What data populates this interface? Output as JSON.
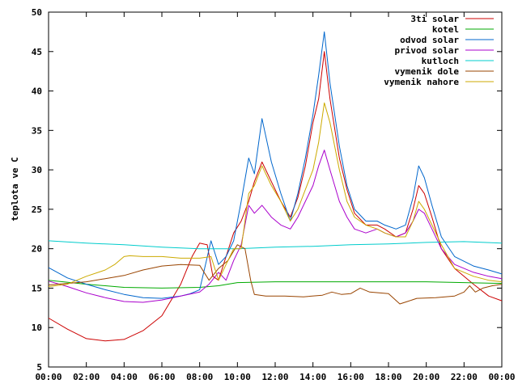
{
  "chart_data": {
    "type": "line",
    "title": "",
    "xlabel": "",
    "ylabel": "teplota ve C",
    "ylim": [
      5,
      50
    ],
    "xlim": [
      "00:00",
      "24:00"
    ],
    "grid": false,
    "legend": "top-right",
    "x_ticks": [
      "00:00",
      "02:00",
      "04:00",
      "06:00",
      "08:00",
      "10:00",
      "12:00",
      "14:00",
      "16:00",
      "18:00",
      "20:00",
      "22:00",
      "00:00"
    ],
    "y_ticks": [
      "5",
      "10",
      "15",
      "20",
      "25",
      "30",
      "35",
      "40",
      "45",
      "50"
    ],
    "series": [
      {
        "name": "3ti solar",
        "color": "#cc0000",
        "points": [
          [
            0,
            11.2
          ],
          [
            1,
            9.8
          ],
          [
            2,
            8.6
          ],
          [
            3,
            8.3
          ],
          [
            4,
            8.5
          ],
          [
            5,
            9.6
          ],
          [
            6,
            11.5
          ],
          [
            7,
            15.5
          ],
          [
            7.6,
            19.0
          ],
          [
            8,
            20.7
          ],
          [
            8.4,
            20.5
          ],
          [
            8.7,
            16.5
          ],
          [
            9,
            16.0
          ],
          [
            9.4,
            19.0
          ],
          [
            9.8,
            22.0
          ],
          [
            10.2,
            23.5
          ],
          [
            10.6,
            26.0
          ],
          [
            10.9,
            28.5
          ],
          [
            11.3,
            31.0
          ],
          [
            11.8,
            28.5
          ],
          [
            12.3,
            26.0
          ],
          [
            12.8,
            24.0
          ],
          [
            13.2,
            26.5
          ],
          [
            13.6,
            30.5
          ],
          [
            14,
            36.0
          ],
          [
            14.3,
            39.0
          ],
          [
            14.6,
            45.0
          ],
          [
            14.9,
            39.0
          ],
          [
            15.4,
            31.5
          ],
          [
            15.8,
            27.5
          ],
          [
            16.2,
            24.5
          ],
          [
            16.8,
            23.0
          ],
          [
            17.4,
            23.0
          ],
          [
            17.8,
            22.5
          ],
          [
            18.4,
            21.5
          ],
          [
            18.9,
            22.0
          ],
          [
            19.3,
            25.0
          ],
          [
            19.6,
            28.0
          ],
          [
            19.9,
            27.0
          ],
          [
            20.3,
            24.0
          ],
          [
            20.8,
            20.0
          ],
          [
            21.5,
            17.5
          ],
          [
            22.5,
            15.5
          ],
          [
            23.3,
            14.0
          ],
          [
            24,
            13.4
          ]
        ]
      },
      {
        "name": "kotel",
        "color": "#00aa00",
        "points": [
          [
            0,
            16.0
          ],
          [
            2,
            15.5
          ],
          [
            4,
            15.1
          ],
          [
            6,
            15.0
          ],
          [
            8,
            15.1
          ],
          [
            9,
            15.3
          ],
          [
            10,
            15.7
          ],
          [
            12,
            15.8
          ],
          [
            14,
            15.8
          ],
          [
            16,
            15.8
          ],
          [
            18,
            15.8
          ],
          [
            20,
            15.8
          ],
          [
            22,
            15.7
          ],
          [
            24,
            15.6
          ]
        ]
      },
      {
        "name": "odvod solar",
        "color": "#0066cc",
        "points": [
          [
            0,
            17.6
          ],
          [
            1,
            16.3
          ],
          [
            2,
            15.5
          ],
          [
            3,
            14.8
          ],
          [
            4,
            14.2
          ],
          [
            5,
            13.8
          ],
          [
            6,
            13.7
          ],
          [
            7,
            14.0
          ],
          [
            7.5,
            14.3
          ],
          [
            8,
            14.8
          ],
          [
            8.6,
            21.0
          ],
          [
            9,
            18.0
          ],
          [
            9.4,
            19.0
          ],
          [
            9.8,
            21.0
          ],
          [
            10.2,
            26.0
          ],
          [
            10.6,
            31.5
          ],
          [
            10.9,
            29.5
          ],
          [
            11.3,
            36.5
          ],
          [
            11.8,
            31.0
          ],
          [
            12.3,
            27.0
          ],
          [
            12.8,
            23.5
          ],
          [
            13.2,
            27.0
          ],
          [
            13.6,
            31.5
          ],
          [
            14,
            37.0
          ],
          [
            14.3,
            42.0
          ],
          [
            14.6,
            47.5
          ],
          [
            14.9,
            41.0
          ],
          [
            15.4,
            33.0
          ],
          [
            15.8,
            28.0
          ],
          [
            16.2,
            25.0
          ],
          [
            16.8,
            23.5
          ],
          [
            17.4,
            23.5
          ],
          [
            17.8,
            23.0
          ],
          [
            18.4,
            22.5
          ],
          [
            18.9,
            23.0
          ],
          [
            19.3,
            26.5
          ],
          [
            19.6,
            30.5
          ],
          [
            19.9,
            29.0
          ],
          [
            20.3,
            25.5
          ],
          [
            20.8,
            21.5
          ],
          [
            21.5,
            19.0
          ],
          [
            22.5,
            17.8
          ],
          [
            23.3,
            17.3
          ],
          [
            24,
            16.8
          ]
        ]
      },
      {
        "name": "privod solar",
        "color": "#aa00cc",
        "points": [
          [
            0,
            15.9
          ],
          [
            1,
            15.2
          ],
          [
            2,
            14.4
          ],
          [
            3,
            13.8
          ],
          [
            4,
            13.3
          ],
          [
            5,
            13.2
          ],
          [
            6,
            13.5
          ],
          [
            7,
            14.0
          ],
          [
            8,
            14.5
          ],
          [
            8.5,
            15.5
          ],
          [
            9,
            17.0
          ],
          [
            9.4,
            16.0
          ],
          [
            9.8,
            18.5
          ],
          [
            10.2,
            20.5
          ],
          [
            10.6,
            25.5
          ],
          [
            10.9,
            24.5
          ],
          [
            11.3,
            25.5
          ],
          [
            11.8,
            24.0
          ],
          [
            12.3,
            23.0
          ],
          [
            12.8,
            22.5
          ],
          [
            13.2,
            24.0
          ],
          [
            13.6,
            26.0
          ],
          [
            14,
            28.0
          ],
          [
            14.3,
            30.5
          ],
          [
            14.6,
            32.5
          ],
          [
            14.9,
            30.0
          ],
          [
            15.4,
            26.0
          ],
          [
            15.8,
            24.0
          ],
          [
            16.2,
            22.5
          ],
          [
            16.8,
            22.0
          ],
          [
            17.4,
            22.5
          ],
          [
            17.8,
            22.0
          ],
          [
            18.4,
            21.5
          ],
          [
            18.9,
            22.0
          ],
          [
            19.3,
            23.5
          ],
          [
            19.6,
            25.0
          ],
          [
            19.9,
            24.5
          ],
          [
            20.3,
            22.5
          ],
          [
            20.8,
            20.0
          ],
          [
            21.5,
            18.0
          ],
          [
            22.5,
            17.0
          ],
          [
            23.3,
            16.5
          ],
          [
            24,
            16.2
          ]
        ]
      },
      {
        "name": "kutloch",
        "color": "#00cccc",
        "points": [
          [
            0,
            21.0
          ],
          [
            2,
            20.7
          ],
          [
            4,
            20.5
          ],
          [
            6,
            20.2
          ],
          [
            8,
            20.0
          ],
          [
            10,
            20.0
          ],
          [
            12,
            20.2
          ],
          [
            14,
            20.3
          ],
          [
            16,
            20.5
          ],
          [
            18,
            20.6
          ],
          [
            20,
            20.8
          ],
          [
            22,
            20.9
          ],
          [
            24,
            20.7
          ]
        ]
      },
      {
        "name": "vymenik dole",
        "color": "#994400",
        "points": [
          [
            0,
            15.4
          ],
          [
            1,
            15.6
          ],
          [
            2,
            15.8
          ],
          [
            3,
            16.2
          ],
          [
            4,
            16.6
          ],
          [
            5,
            17.3
          ],
          [
            6,
            17.8
          ],
          [
            7,
            18.0
          ],
          [
            8,
            17.9
          ],
          [
            8.5,
            16.0
          ],
          [
            9,
            17.5
          ],
          [
            9.5,
            18.5
          ],
          [
            10,
            20.5
          ],
          [
            10.4,
            20.0
          ],
          [
            10.7,
            16.0
          ],
          [
            10.9,
            14.2
          ],
          [
            11.5,
            14.0
          ],
          [
            12.5,
            14.0
          ],
          [
            13.5,
            13.9
          ],
          [
            14.5,
            14.1
          ],
          [
            15,
            14.5
          ],
          [
            15.5,
            14.2
          ],
          [
            16,
            14.3
          ],
          [
            16.5,
            15.0
          ],
          [
            17,
            14.5
          ],
          [
            18,
            14.3
          ],
          [
            18.6,
            13.0
          ],
          [
            19,
            13.3
          ],
          [
            19.5,
            13.7
          ],
          [
            20.5,
            13.8
          ],
          [
            21.5,
            14.0
          ],
          [
            22,
            14.5
          ],
          [
            22.3,
            15.3
          ],
          [
            22.6,
            14.5
          ],
          [
            23,
            15.0
          ],
          [
            23.5,
            15.3
          ],
          [
            24,
            15.5
          ]
        ]
      },
      {
        "name": "vymenik nahore",
        "color": "#ccaa00",
        "points": [
          [
            0,
            15.2
          ],
          [
            1,
            15.5
          ],
          [
            2,
            16.5
          ],
          [
            3,
            17.3
          ],
          [
            3.5,
            18.0
          ],
          [
            4,
            19.0
          ],
          [
            4.3,
            19.1
          ],
          [
            5,
            19.0
          ],
          [
            6,
            19.0
          ],
          [
            7,
            18.8
          ],
          [
            8,
            18.8
          ],
          [
            8.6,
            19.0
          ],
          [
            9,
            16.0
          ],
          [
            9.4,
            18.0
          ],
          [
            9.8,
            20.0
          ],
          [
            10.2,
            20.0
          ],
          [
            10.6,
            27.0
          ],
          [
            10.9,
            28.0
          ],
          [
            11.3,
            30.5
          ],
          [
            11.8,
            28.0
          ],
          [
            12.3,
            26.0
          ],
          [
            12.8,
            23.5
          ],
          [
            13.2,
            25.0
          ],
          [
            13.6,
            27.5
          ],
          [
            14,
            30.0
          ],
          [
            14.3,
            33.5
          ],
          [
            14.6,
            38.5
          ],
          [
            14.9,
            36.0
          ],
          [
            15.4,
            30.0
          ],
          [
            15.8,
            26.0
          ],
          [
            16.2,
            24.0
          ],
          [
            16.8,
            23.0
          ],
          [
            17.4,
            22.5
          ],
          [
            17.8,
            22.0
          ],
          [
            18.4,
            21.5
          ],
          [
            18.9,
            21.5
          ],
          [
            19.3,
            23.5
          ],
          [
            19.6,
            26.0
          ],
          [
            19.9,
            25.0
          ],
          [
            20.3,
            23.0
          ],
          [
            20.8,
            20.5
          ],
          [
            21.5,
            17.5
          ],
          [
            22.5,
            16.5
          ],
          [
            23.3,
            16.0
          ],
          [
            24,
            15.8
          ]
        ]
      }
    ]
  }
}
